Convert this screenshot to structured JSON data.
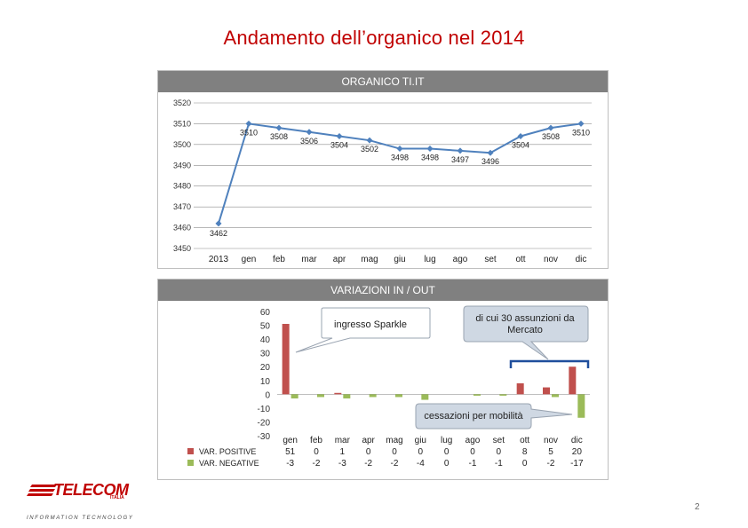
{
  "title": "Andamento dell’organico nel 2014",
  "panels": {
    "organico_header": "ORGANICO TI.IT",
    "variazioni_header": "VARIAZIONI IN / OUT"
  },
  "callouts": {
    "sparkle": "ingresso Sparkle",
    "mercato": "di cui 30 assunzioni da Mercato",
    "mobilita": "cessazioni per mobilità"
  },
  "logo": {
    "brand": "TELECOM",
    "sub": "ITALIA",
    "tagline": "INFORMATION TECHNOLOGY"
  },
  "page_number": "2",
  "colors": {
    "title": "#c00000",
    "line": "#4f81bd",
    "positive": "#c0504d",
    "negative": "#9bbb59",
    "panel_header": "#808080"
  },
  "chart_data": [
    {
      "type": "line",
      "title": "ORGANICO TI.IT",
      "categories": [
        "2013",
        "gen",
        "feb",
        "mar",
        "apr",
        "mag",
        "giu",
        "lug",
        "ago",
        "set",
        "ott",
        "nov",
        "dic"
      ],
      "series": [
        {
          "values": [
            3462,
            3510,
            3508,
            3506,
            3504,
            3502,
            3498,
            3498,
            3497,
            3496,
            3504,
            3508,
            3510
          ]
        }
      ],
      "data_labels": [
        "3462",
        "3510",
        "3508",
        "3506",
        "3504",
        "3502",
        "3498",
        "3498",
        "3497",
        "3496",
        "3504",
        "3508",
        "3510"
      ],
      "ylim": [
        3450,
        3520
      ],
      "yticks": [
        "3520",
        "3510",
        "3500",
        "3490",
        "3480",
        "3470",
        "3460",
        "3450"
      ],
      "grid": true
    },
    {
      "type": "bar",
      "title": "VARIAZIONI IN / OUT",
      "categories": [
        "gen",
        "feb",
        "mar",
        "apr",
        "mag",
        "giu",
        "lug",
        "ago",
        "set",
        "ott",
        "nov",
        "dic"
      ],
      "series": [
        {
          "name": "VAR. POSITIVE",
          "values": [
            51,
            0,
            1,
            0,
            0,
            0,
            0,
            0,
            0,
            8,
            5,
            20
          ],
          "labels": [
            "51",
            "0",
            "1",
            "0",
            "0",
            "0",
            "0",
            "0",
            "0",
            "8",
            "5",
            "20"
          ]
        },
        {
          "name": "VAR. NEGATIVE",
          "values": [
            -3,
            -2,
            -3,
            -2,
            -2,
            -4,
            0,
            -1,
            -1,
            0,
            -2,
            -17
          ],
          "labels": [
            "-3",
            "-2",
            "-3",
            "-2",
            "-2",
            "-4",
            "0",
            "-1",
            "-1",
            "0",
            "-2",
            "-17"
          ]
        }
      ],
      "ylim": [
        -30,
        60
      ],
      "yticks": [
        "60",
        "50",
        "40",
        "30",
        "20",
        "10",
        "0",
        "-10",
        "-20",
        "-30"
      ],
      "legend": "table-left"
    }
  ]
}
